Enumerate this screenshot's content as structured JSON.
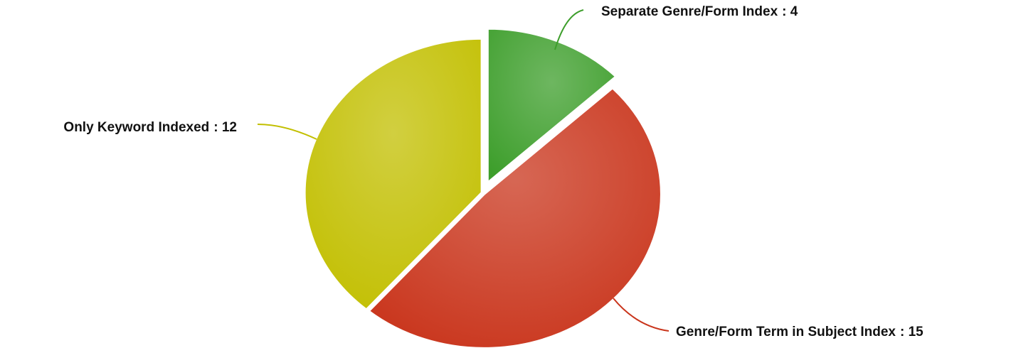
{
  "chart_data": {
    "type": "pie",
    "categories": [
      "Separate Genre/Form Index",
      "Genre/Form Term in Subject Index",
      "Only Keyword Indexed"
    ],
    "values": [
      4,
      15,
      12
    ],
    "value_labels": [
      ": 4",
      ": 15",
      ": 12"
    ],
    "colors": [
      "#3d9e2b",
      "#c9341b",
      "#c2bf00"
    ]
  }
}
